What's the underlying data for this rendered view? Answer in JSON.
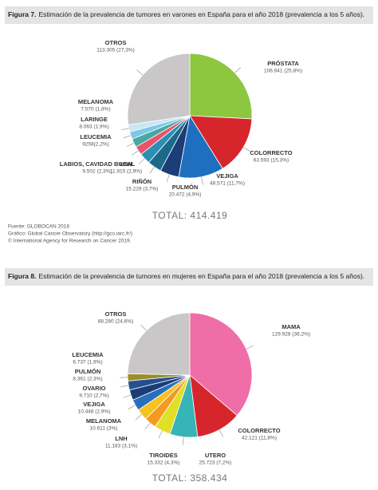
{
  "chart_data": [
    {
      "type": "pie",
      "figure_label": "Figura 7.",
      "title": "Estimación de la prevalencia de tumores en varones en España para el año 2018 (prevalencia a los 5 años).",
      "categories": [
        "PRÓSTATA",
        "COLORRECTO",
        "VEJIGA",
        "PULMÓN",
        "RIÑÓN",
        "LNH",
        "LABIOS, CAVIDAD BUCAL",
        "LEUCEMIA",
        "LARINGE",
        "MELANOMA",
        "OTROS"
      ],
      "values": [
        106941,
        63593,
        48571,
        20472,
        15229,
        11915,
        9502,
        9258,
        8063,
        7570,
        113305
      ],
      "value_labels": [
        "106.941 (25,8%)",
        "63.593 (15,3%)",
        "48.571 (11,7%)",
        "20.472 (4,9%)",
        "15.229 (3,7%)",
        "11.915 (2,9%)",
        "9.502 (2,3%)",
        "9258(2,2%)",
        "8.063 (1,9%)",
        "7.570 (1,8%)",
        "113.305 (27,3%)"
      ],
      "colors": [
        "#8dc63f",
        "#d7252c",
        "#1f6fbf",
        "#1b3d78",
        "#1c6a8a",
        "#2e8fb5",
        "#e8546b",
        "#4aa6a0",
        "#7fc7e8",
        "#c9e6f5",
        "#c9c7c7"
      ],
      "total": "TOTAL: 414.419",
      "source_notes": [
        "Fuente: GLOBOCAN 2018",
        "Gráfico: Global Cancer Observatory (http://gco.iarc.fr/)",
        "© International Agency for Research on Cancer 2019."
      ]
    },
    {
      "type": "pie",
      "figure_label": "Figura 8.",
      "title": "Estimación de la prevalencia de tumores en mujeres en España para el año 2018 (prevalencia a los 5 años).",
      "categories": [
        "MAMA",
        "COLORRECTO",
        "UTERO",
        "TIROIDES",
        "LNH",
        "MELANOMA",
        "VEJIGA",
        "OVARIO",
        "PULMÓN",
        "LEUCEMIA",
        "OTROS"
      ],
      "values": [
        129928,
        42121,
        25723,
        15332,
        11183,
        10611,
        10448,
        9710,
        8361,
        6737,
        88280
      ],
      "value_labels": [
        "129.928 (36,2%)",
        "42.121 (11,8%)",
        "25.723 (7,2%)",
        "15.332 (4,3%)",
        "11.183 (3,1%)",
        "10.611 (3%)",
        "10.448 (2,9%)",
        "9.710 (2,7%)",
        "8.361 (2,3%)",
        "6.737 (1,9%)",
        "88.280 (24,6%)"
      ],
      "colors": [
        "#ef6ea8",
        "#d7252c",
        "#37b4b6",
        "#e2df27",
        "#f39a1f",
        "#f6c21e",
        "#2a6fbb",
        "#1b3d78",
        "#24508f",
        "#9a8d2a",
        "#c9c7c7"
      ],
      "total": "TOTAL: 358.434"
    }
  ]
}
